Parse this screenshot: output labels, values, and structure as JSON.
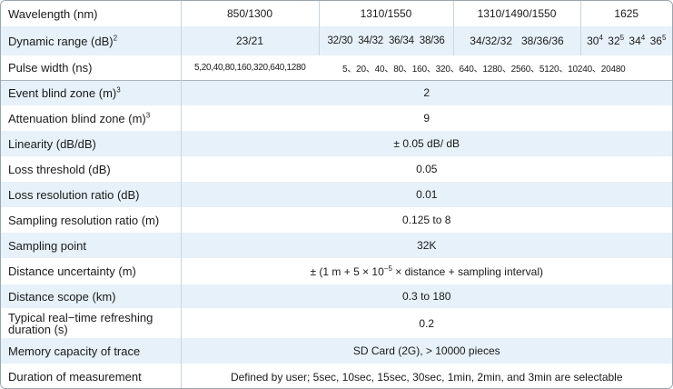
{
  "wavelength": {
    "label": "Wavelength (nm)",
    "values": [
      "850/1300",
      "1310/1550",
      "1310/1490/1550",
      "1625"
    ]
  },
  "dynamic_range": {
    "label": "Dynamic range (dB)",
    "label_sup": "2",
    "v850": "23/21",
    "v1310_1550": "32/30  34/32  36/34  38/36",
    "v1310_1490_1550": "34/32/32   38/36/36",
    "v1625": [
      {
        "val": "30",
        "sup": "4"
      },
      {
        "val": "32",
        "sup": "5"
      },
      {
        "val": "34",
        "sup": "4"
      },
      {
        "val": "36",
        "sup": "5"
      }
    ]
  },
  "pulse_width": {
    "label": "Pulse width (ns)",
    "v850": "5,20,40,80,160,320,640,1280",
    "v_rest": "5、20、40、80、160、320、640、1280、2560、5120、10240、20480"
  },
  "rows": [
    {
      "label": "Event blind zone (m)",
      "sup": "3",
      "value": "2"
    },
    {
      "label": "Attenuation blind zone (m)",
      "sup": "3",
      "value": "9"
    },
    {
      "label": "Linearity (dB/dB)",
      "sup": "",
      "value": "± 0.05 dB/ dB"
    },
    {
      "label": "Loss threshold (dB)",
      "sup": "",
      "value": "0.05"
    },
    {
      "label": "Loss resolution ratio (dB)",
      "sup": "",
      "value": "0.01"
    },
    {
      "label": "Sampling resolution ratio (m)",
      "sup": "",
      "value": "0.125 to 8"
    },
    {
      "label": "Sampling point",
      "sup": "",
      "value": "32K"
    }
  ],
  "distance_uncertainty": {
    "label": "Distance uncertainty  (m)",
    "prefix": "± (1 m + 5 × 10",
    "exp": "−5",
    "suffix": " × distance + sampling interval)"
  },
  "rows2": [
    {
      "label": "Distance scope (km)",
      "value": "0.3 to 180"
    }
  ],
  "refresh": {
    "label_line1": "Typical real−time refreshing",
    "label_line2": "duration (s)",
    "value": "0.2"
  },
  "rows3": [
    {
      "label": "Memory capacity of trace",
      "value": "SD Card (2G), > 10000 pieces"
    },
    {
      "label": "Duration of measurement",
      "value": "Defined by user; 5sec, 10sec, 15sec, 30sec, 1min, 2min, and 3min are selectable"
    }
  ]
}
